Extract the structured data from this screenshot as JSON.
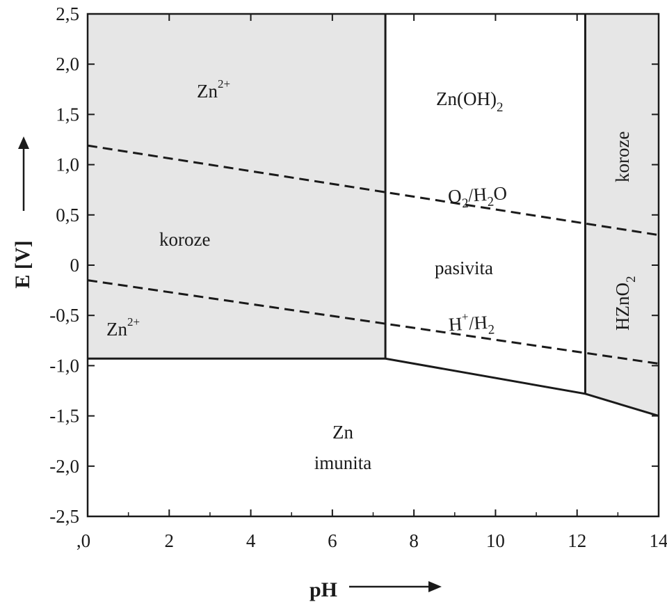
{
  "chart_data": {
    "type": "line",
    "xlabel": "pH",
    "ylabel": "E [V]",
    "xlim": [
      0,
      14
    ],
    "ylim": [
      -2.5,
      2.5
    ],
    "x_ticks": [
      0,
      2,
      4,
      6,
      8,
      10,
      12,
      14
    ],
    "x_tick_labels": [
      ",0",
      "2",
      "4",
      "6",
      "8",
      "10",
      "12",
      "14"
    ],
    "y_ticks": [
      2.5,
      2.0,
      1.5,
      1.0,
      0.5,
      0,
      -0.5,
      -1.0,
      -1.5,
      -2.0,
      -2.5
    ],
    "y_tick_labels": [
      "2,5",
      "2,0",
      "1,5",
      "1,0",
      "0,5",
      "0",
      "-0,5",
      "-1,0",
      "-1,5",
      "-2,0",
      "-2,5"
    ],
    "grid": false,
    "colors": {
      "corrosion_fill": "#e6e6e6",
      "line": "#1a1a1a"
    },
    "boundaries": [
      {
        "style": "solid",
        "points": [
          [
            0,
            -0.93
          ],
          [
            7.3,
            -0.93
          ],
          [
            12.2,
            -1.28
          ],
          [
            14,
            -1.5
          ]
        ]
      },
      {
        "style": "solid",
        "points": [
          [
            7.3,
            -0.93
          ],
          [
            7.3,
            2.5
          ]
        ]
      },
      {
        "style": "solid",
        "points": [
          [
            12.2,
            -1.28
          ],
          [
            12.2,
            2.5
          ]
        ]
      }
    ],
    "series": [
      {
        "name": "O2/H2O",
        "style": "dashed",
        "x": [
          0,
          14
        ],
        "y": [
          1.19,
          0.3
        ]
      },
      {
        "name": "H+/H2",
        "style": "dashed",
        "x": [
          0,
          14
        ],
        "y": [
          -0.15,
          -0.98
        ]
      }
    ],
    "regions": [
      {
        "label": "Zn2+ koroze",
        "fill": "shaded",
        "polygon": [
          [
            0,
            2.5
          ],
          [
            7.3,
            2.5
          ],
          [
            7.3,
            -0.93
          ],
          [
            0,
            -0.93
          ]
        ]
      },
      {
        "label": "HZnO2 koroze",
        "fill": "shaded",
        "polygon": [
          [
            12.2,
            2.5
          ],
          [
            14,
            2.5
          ],
          [
            14,
            -1.5
          ],
          [
            12.2,
            -1.28
          ]
        ]
      }
    ],
    "labels": {
      "zn2_top": "Zn2+",
      "koroze_left": "koroze",
      "zn2_bottom": "Zn2+",
      "zn_oh2": "Zn(OH)2",
      "o2_h2o": "O2/H2O",
      "pasivita": "pasivita",
      "h_h2": "H+/H2",
      "koroze_right": "koroze",
      "hzno2": "HZnO2",
      "zn": "Zn",
      "imunita": "imunita"
    }
  }
}
